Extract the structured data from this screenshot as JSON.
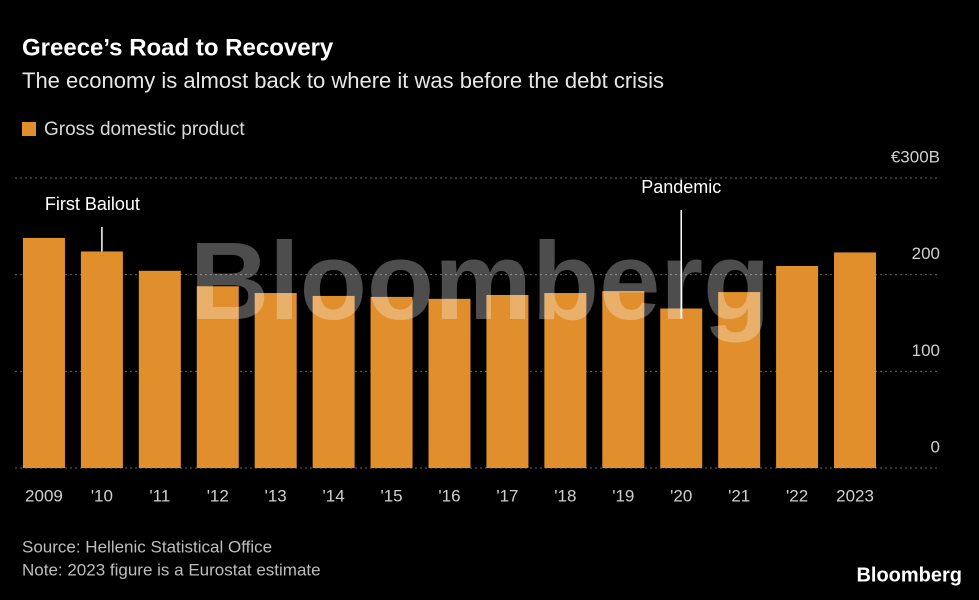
{
  "chart_data": {
    "type": "bar",
    "title": "Greece’s Road to Recovery",
    "subtitle": "The economy is almost back to where it was before the debt crisis",
    "categories": [
      "2009",
      "'10",
      "'11",
      "'12",
      "'13",
      "'14",
      "'15",
      "'16",
      "'17",
      "'18",
      "'19",
      "'20",
      "'21",
      "'22",
      "2023"
    ],
    "series": [
      {
        "name": "Gross domestic product",
        "color": "#e08f2c",
        "values": [
          238,
          224,
          204,
          188,
          181,
          178,
          177,
          175,
          179,
          181,
          183,
          165,
          182,
          209,
          223
        ]
      }
    ],
    "ylim": [
      0,
      300
    ],
    "yticks": [
      0,
      100,
      200,
      {
        "value": 300,
        "label": "€300B"
      }
    ],
    "grid": true,
    "legend": "top-left",
    "annotations": [
      {
        "text": "First Bailout",
        "category": "'10"
      },
      {
        "text": "Pandemic",
        "category": "'20"
      }
    ]
  },
  "watermark": "Bloomberg",
  "source": "Source: Hellenic Statistical Office",
  "note": "Note: 2023 figure is a Eurostat estimate",
  "brand": "Bloomberg"
}
